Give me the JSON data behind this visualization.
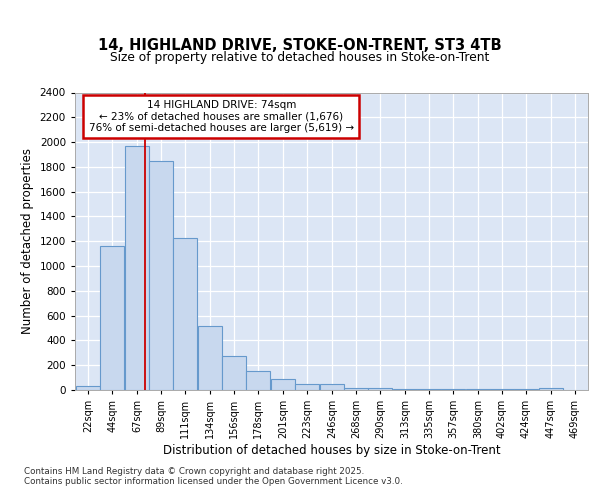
{
  "title_line1": "14, HIGHLAND DRIVE, STOKE-ON-TRENT, ST3 4TB",
  "title_line2": "Size of property relative to detached houses in Stoke-on-Trent",
  "xlabel": "Distribution of detached houses by size in Stoke-on-Trent",
  "ylabel": "Number of detached properties",
  "bin_labels": [
    "22sqm",
    "44sqm",
    "67sqm",
    "89sqm",
    "111sqm",
    "134sqm",
    "156sqm",
    "178sqm",
    "201sqm",
    "223sqm",
    "246sqm",
    "268sqm",
    "290sqm",
    "313sqm",
    "335sqm",
    "357sqm",
    "380sqm",
    "402sqm",
    "424sqm",
    "447sqm",
    "469sqm"
  ],
  "bar_heights": [
    30,
    1160,
    1970,
    1850,
    1230,
    520,
    275,
    150,
    90,
    45,
    45,
    20,
    15,
    5,
    5,
    5,
    5,
    5,
    5,
    15,
    0
  ],
  "bar_color": "#c8d8ee",
  "bar_edge_color": "#6699cc",
  "ylim": [
    0,
    2400
  ],
  "yticks": [
    0,
    200,
    400,
    600,
    800,
    1000,
    1200,
    1400,
    1600,
    1800,
    2000,
    2200,
    2400
  ],
  "vline_x": 74,
  "vline_color": "#cc0000",
  "annotation_text": "14 HIGHLAND DRIVE: 74sqm\n← 23% of detached houses are smaller (1,676)\n76% of semi-detached houses are larger (5,619) →",
  "annotation_box_color": "#cc0000",
  "fig_bg_color": "#ffffff",
  "plot_bg_color": "#dce6f5",
  "grid_color": "#ffffff",
  "footnote1": "Contains HM Land Registry data © Crown copyright and database right 2025.",
  "footnote2": "Contains public sector information licensed under the Open Government Licence v3.0.",
  "bin_width": 22
}
